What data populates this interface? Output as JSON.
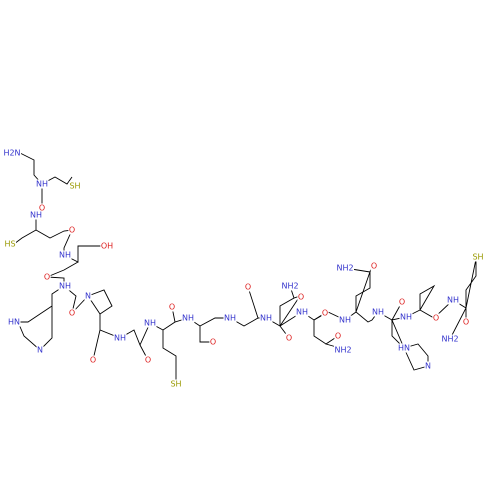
{
  "labels": [
    "H2N",
    "NH",
    "SH",
    "O",
    "NH",
    "HS",
    "O",
    "NH",
    "OH",
    "O",
    "NH",
    "HN",
    "N",
    "O",
    "N",
    "O",
    "NH",
    "O",
    "NH",
    "SH",
    "O",
    "NH",
    "O",
    "NH",
    "O",
    "NH",
    "NH2",
    "O",
    "O",
    "NH",
    "O",
    "NH2",
    "NH",
    "NH2",
    "O",
    "O",
    "NH",
    "O",
    "NH",
    "HN",
    "N",
    "O",
    "NH",
    "O",
    "SH",
    "NH2"
  ]
}
